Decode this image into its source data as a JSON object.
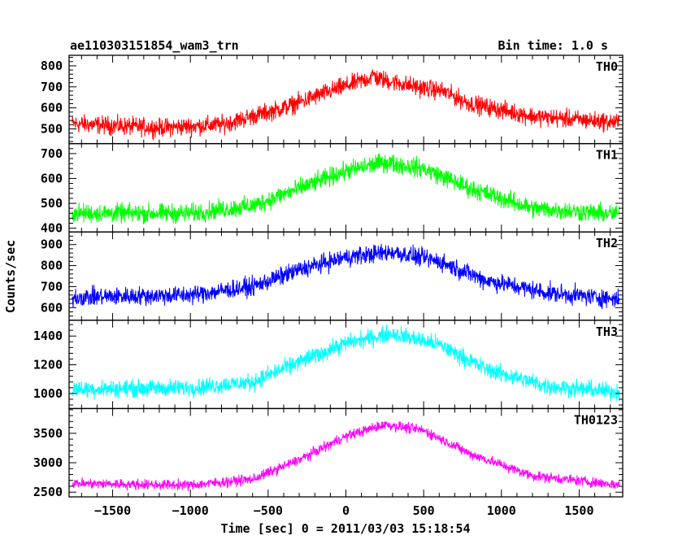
{
  "chart_data": {
    "type": "line",
    "title_left": "ae110303151854_wam3_trn",
    "title_right": "Bin time: 1.0 s",
    "xlabel": "Time [sec] 0 = 2011/03/03 15:18:54",
    "ylabel": "Counts/sec",
    "xlim": [
      -1780,
      1780
    ],
    "x_ticks": [
      -1500,
      -1000,
      -500,
      0,
      500,
      1000,
      1500
    ],
    "x_tick_labels": [
      "−1500",
      "−1000",
      "−500",
      "0",
      "500",
      "1000",
      "1500"
    ],
    "panels": [
      {
        "label": "TH0",
        "color": "#ff0000",
        "ylim": [
          430,
          850
        ],
        "y_ticks": [
          500,
          600,
          700,
          800
        ],
        "y_tick_labels": [
          "500",
          "600",
          "700",
          "800"
        ],
        "x_range": [
          -1760,
          1760
        ],
        "profile": [
          [
            -1760,
            525
          ],
          [
            -1200,
            505
          ],
          [
            -800,
            520
          ],
          [
            -400,
            600
          ],
          [
            -100,
            680
          ],
          [
            150,
            740
          ],
          [
            180,
            760
          ],
          [
            200,
            740
          ],
          [
            450,
            700
          ],
          [
            620,
            680
          ],
          [
            800,
            620
          ],
          [
            1200,
            560
          ],
          [
            1760,
            530
          ]
        ],
        "noise": 40
      },
      {
        "label": "TH1",
        "color": "#00ff00",
        "ylim": [
          385,
          740
        ],
        "y_ticks": [
          400,
          500,
          600,
          700
        ],
        "y_tick_labels": [
          "400",
          "500",
          "600",
          "700"
        ],
        "x_range": [
          -1760,
          1760
        ],
        "profile": [
          [
            -1760,
            460
          ],
          [
            -1000,
            460
          ],
          [
            -600,
            490
          ],
          [
            -300,
            560
          ],
          [
            0,
            630
          ],
          [
            250,
            665
          ],
          [
            500,
            640
          ],
          [
            800,
            560
          ],
          [
            1200,
            480
          ],
          [
            1760,
            455
          ]
        ],
        "noise": 35
      },
      {
        "label": "TH2",
        "color": "#0000ff",
        "ylim": [
          540,
          960
        ],
        "y_ticks": [
          600,
          700,
          800,
          900
        ],
        "y_tick_labels": [
          "600",
          "700",
          "800",
          "900"
        ],
        "x_range": [
          -1760,
          1760
        ],
        "profile": [
          [
            -1760,
            650
          ],
          [
            -1000,
            660
          ],
          [
            -600,
            700
          ],
          [
            -300,
            780
          ],
          [
            0,
            840
          ],
          [
            300,
            865
          ],
          [
            600,
            820
          ],
          [
            900,
            730
          ],
          [
            1300,
            670
          ],
          [
            1760,
            640
          ]
        ],
        "noise": 40
      },
      {
        "label": "TH3",
        "color": "#00ffff",
        "ylim": [
          895,
          1510
        ],
        "y_ticks": [
          1000,
          1200,
          1400
        ],
        "y_tick_labels": [
          "1000",
          "1200",
          "1400"
        ],
        "x_range": [
          -1760,
          1760
        ],
        "profile": [
          [
            -1760,
            1030
          ],
          [
            -1000,
            1040
          ],
          [
            -600,
            1080
          ],
          [
            -300,
            1220
          ],
          [
            0,
            1350
          ],
          [
            300,
            1420
          ],
          [
            600,
            1340
          ],
          [
            900,
            1170
          ],
          [
            1300,
            1050
          ],
          [
            1760,
            1010
          ]
        ],
        "noise": 55
      },
      {
        "label": "TH0123",
        "color": "#ff00ff",
        "ylim": [
          2420,
          3920
        ],
        "y_ticks": [
          2500,
          3000,
          3500
        ],
        "y_tick_labels": [
          "2500",
          "3000",
          "3500"
        ],
        "x_range": [
          -1760,
          1760
        ],
        "profile": [
          [
            -1760,
            2650
          ],
          [
            -1000,
            2620
          ],
          [
            -600,
            2720
          ],
          [
            -300,
            3050
          ],
          [
            0,
            3450
          ],
          [
            250,
            3650
          ],
          [
            500,
            3550
          ],
          [
            800,
            3150
          ],
          [
            1200,
            2780
          ],
          [
            1760,
            2620
          ]
        ],
        "noise": 80
      }
    ]
  }
}
